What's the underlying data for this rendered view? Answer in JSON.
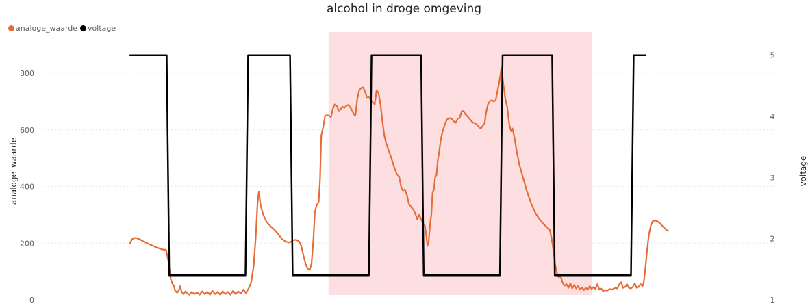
{
  "chart_data": {
    "type": "line",
    "title": "alcohol in droge omgeving",
    "legend": {
      "placement": "top-left"
    },
    "grid": true,
    "y_left": {
      "label": "analoge_waarde",
      "range": [
        0,
        950
      ],
      "ticks": [
        0,
        200,
        400,
        600,
        800
      ]
    },
    "y_right": {
      "label": "voltage",
      "range": [
        1,
        5.4
      ],
      "ticks": [
        1,
        2,
        3,
        4,
        5
      ]
    },
    "x": {
      "range": [
        0,
        1000
      ],
      "labels": []
    },
    "highlight_region": {
      "x": [
        308.3,
        718.0
      ],
      "color": "#fddfe1"
    },
    "series": [
      {
        "name": "analoge_waarde",
        "axis": "left",
        "color": "#e66c37",
        "points": [
          [
            0,
            200
          ],
          [
            3,
            214
          ],
          [
            8,
            219
          ],
          [
            14,
            215
          ],
          [
            20,
            207
          ],
          [
            30,
            196
          ],
          [
            40,
            186
          ],
          [
            50,
            178
          ],
          [
            56,
            176
          ],
          [
            60,
            130
          ],
          [
            63,
            75
          ],
          [
            66,
            55
          ],
          [
            68,
            50
          ],
          [
            70,
            32
          ],
          [
            73,
            25
          ],
          [
            76,
            35
          ],
          [
            78,
            48
          ],
          [
            80,
            28
          ],
          [
            83,
            20
          ],
          [
            86,
            30
          ],
          [
            89,
            22
          ],
          [
            92,
            18
          ],
          [
            96,
            28
          ],
          [
            100,
            20
          ],
          [
            104,
            26
          ],
          [
            108,
            18
          ],
          [
            112,
            30
          ],
          [
            116,
            20
          ],
          [
            120,
            28
          ],
          [
            124,
            18
          ],
          [
            128,
            32
          ],
          [
            132,
            20
          ],
          [
            136,
            28
          ],
          [
            140,
            18
          ],
          [
            144,
            30
          ],
          [
            148,
            20
          ],
          [
            152,
            28
          ],
          [
            156,
            18
          ],
          [
            160,
            32
          ],
          [
            164,
            20
          ],
          [
            168,
            30
          ],
          [
            172,
            22
          ],
          [
            176,
            36
          ],
          [
            180,
            24
          ],
          [
            184,
            40
          ],
          [
            188,
            60
          ],
          [
            192,
            120
          ],
          [
            195,
            215
          ],
          [
            198,
            340
          ],
          [
            200,
            382
          ],
          [
            203,
            330
          ],
          [
            207,
            300
          ],
          [
            212,
            275
          ],
          [
            218,
            260
          ],
          [
            224,
            248
          ],
          [
            230,
            232
          ],
          [
            236,
            215
          ],
          [
            242,
            205
          ],
          [
            248,
            202
          ],
          [
            253,
            210
          ],
          [
            258,
            212
          ],
          [
            263,
            205
          ],
          [
            266,
            190
          ],
          [
            270,
            150
          ],
          [
            273,
            125
          ],
          [
            276,
            110
          ],
          [
            279,
            105
          ],
          [
            282,
            130
          ],
          [
            285,
            220
          ],
          [
            287,
            310
          ],
          [
            290,
            335
          ],
          [
            293,
            345
          ],
          [
            295,
            420
          ],
          [
            297,
            580
          ],
          [
            300,
            610
          ],
          [
            303,
            650
          ],
          [
            306,
            652
          ],
          [
            309,
            650
          ],
          [
            312,
            645
          ],
          [
            315,
            675
          ],
          [
            318,
            690
          ],
          [
            321,
            685
          ],
          [
            324,
            668
          ],
          [
            327,
            673
          ],
          [
            330,
            682
          ],
          [
            333,
            678
          ],
          [
            336,
            685
          ],
          [
            339,
            688
          ],
          [
            342,
            680
          ],
          [
            345,
            668
          ],
          [
            348,
            655
          ],
          [
            350,
            650
          ],
          [
            353,
            710
          ],
          [
            356,
            740
          ],
          [
            359,
            748
          ],
          [
            362,
            750
          ],
          [
            365,
            735
          ],
          [
            368,
            715
          ],
          [
            371,
            718
          ],
          [
            374,
            705
          ],
          [
            377,
            698
          ],
          [
            380,
            690
          ],
          [
            383,
            740
          ],
          [
            386,
            730
          ],
          [
            389,
            690
          ],
          [
            392,
            630
          ],
          [
            395,
            580
          ],
          [
            398,
            552
          ],
          [
            402,
            525
          ],
          [
            406,
            500
          ],
          [
            410,
            470
          ],
          [
            414,
            445
          ],
          [
            418,
            435
          ],
          [
            421,
            400
          ],
          [
            424,
            385
          ],
          [
            427,
            390
          ],
          [
            430,
            370
          ],
          [
            433,
            340
          ],
          [
            436,
            330
          ],
          [
            440,
            318
          ],
          [
            443,
            305
          ],
          [
            446,
            285
          ],
          [
            449,
            300
          ],
          [
            452,
            285
          ],
          [
            455,
            270
          ],
          [
            458,
            262
          ],
          [
            460,
            230
          ],
          [
            462,
            190
          ],
          [
            464,
            210
          ],
          [
            466,
            265
          ],
          [
            468,
            300
          ],
          [
            470,
            380
          ],
          [
            472,
            390
          ],
          [
            474,
            435
          ],
          [
            476,
            440
          ],
          [
            478,
            490
          ],
          [
            480,
            520
          ],
          [
            483,
            570
          ],
          [
            486,
            598
          ],
          [
            489,
            620
          ],
          [
            492,
            636
          ],
          [
            496,
            642
          ],
          [
            500,
            638
          ],
          [
            503,
            630
          ],
          [
            506,
            625
          ],
          [
            509,
            640
          ],
          [
            512,
            642
          ],
          [
            515,
            665
          ],
          [
            518,
            668
          ],
          [
            521,
            655
          ],
          [
            524,
            648
          ],
          [
            527,
            640
          ],
          [
            530,
            632
          ],
          [
            533,
            625
          ],
          [
            536,
            624
          ],
          [
            539,
            618
          ],
          [
            542,
            610
          ],
          [
            545,
            605
          ],
          [
            548,
            615
          ],
          [
            551,
            625
          ],
          [
            553,
            660
          ],
          [
            556,
            690
          ],
          [
            559,
            702
          ],
          [
            562,
            705
          ],
          [
            565,
            700
          ],
          [
            568,
            705
          ],
          [
            571,
            740
          ],
          [
            574,
            775
          ],
          [
            577,
            820
          ],
          [
            580,
            760
          ],
          [
            583,
            710
          ],
          [
            586,
            680
          ],
          [
            589,
            620
          ],
          [
            592,
            595
          ],
          [
            594,
            605
          ],
          [
            597,
            575
          ],
          [
            601,
            520
          ],
          [
            605,
            475
          ],
          [
            610,
            435
          ],
          [
            615,
            395
          ],
          [
            620,
            360
          ],
          [
            625,
            330
          ],
          [
            630,
            305
          ],
          [
            636,
            285
          ],
          [
            642,
            268
          ],
          [
            648,
            255
          ],
          [
            652,
            248
          ],
          [
            655,
            215
          ],
          [
            657,
            185
          ],
          [
            660,
            130
          ],
          [
            663,
            95
          ],
          [
            666,
            80
          ],
          [
            669,
            82
          ],
          [
            672,
            60
          ],
          [
            675,
            50
          ],
          [
            678,
            55
          ],
          [
            681,
            42
          ],
          [
            684,
            58
          ],
          [
            687,
            40
          ],
          [
            690,
            52
          ],
          [
            693,
            40
          ],
          [
            696,
            48
          ],
          [
            699,
            36
          ],
          [
            702,
            44
          ],
          [
            705,
            34
          ],
          [
            708,
            42
          ],
          [
            711,
            36
          ],
          [
            714,
            48
          ],
          [
            717,
            38
          ],
          [
            720,
            45
          ],
          [
            723,
            38
          ],
          [
            726,
            55
          ],
          [
            729,
            36
          ],
          [
            732,
            40
          ],
          [
            735,
            30
          ],
          [
            738,
            35
          ],
          [
            741,
            32
          ],
          [
            745,
            38
          ],
          [
            749,
            36
          ],
          [
            753,
            42
          ],
          [
            757,
            40
          ],
          [
            760,
            55
          ],
          [
            763,
            62
          ],
          [
            766,
            42
          ],
          [
            769,
            45
          ],
          [
            772,
            55
          ],
          [
            775,
            42
          ],
          [
            778,
            40
          ],
          [
            781,
            45
          ],
          [
            784,
            58
          ],
          [
            787,
            42
          ],
          [
            790,
            45
          ],
          [
            793,
            55
          ],
          [
            796,
            48
          ],
          [
            798,
            60
          ],
          [
            800,
            100
          ],
          [
            803,
            170
          ],
          [
            806,
            230
          ],
          [
            809,
            262
          ],
          [
            812,
            278
          ],
          [
            816,
            280
          ],
          [
            820,
            276
          ],
          [
            824,
            268
          ],
          [
            828,
            258
          ],
          [
            832,
            250
          ],
          [
            836,
            243
          ]
        ]
      },
      {
        "name": "voltage",
        "axis": "right",
        "color": "#000000",
        "points": [
          [
            0,
            5
          ],
          [
            56.8,
            5
          ],
          [
            60.9,
            1.4
          ],
          [
            179.3,
            1.4
          ],
          [
            183.4,
            5
          ],
          [
            248.5,
            5
          ],
          [
            252.6,
            1.4
          ],
          [
            371.0,
            1.4
          ],
          [
            375.1,
            5
          ],
          [
            452.1,
            5
          ],
          [
            456.2,
            1.4
          ],
          [
            574.6,
            1.4
          ],
          [
            578.7,
            5
          ],
          [
            655.7,
            5
          ],
          [
            659.8,
            1.4
          ],
          [
            778.2,
            1.4
          ],
          [
            782.3,
            5
          ],
          [
            801.1,
            5
          ]
        ]
      }
    ]
  }
}
